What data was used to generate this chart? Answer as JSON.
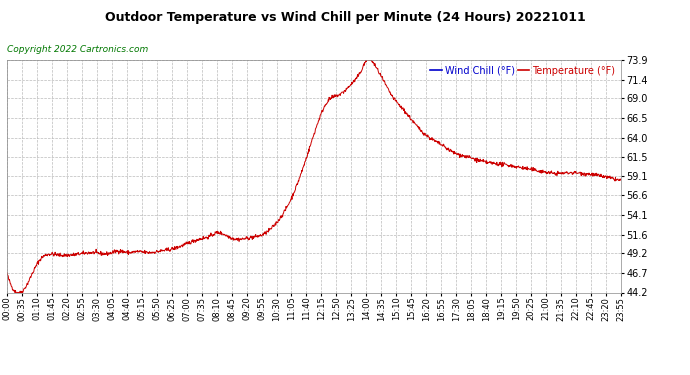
{
  "title": "Outdoor Temperature vs Wind Chill per Minute (24 Hours) 20221011",
  "copyright_text": "Copyright 2022 Cartronics.com",
  "legend_wind_chill": "Wind Chill (°F)",
  "legend_temperature": "Temperature (°F)",
  "y_ticks": [
    44.2,
    46.7,
    49.2,
    51.6,
    54.1,
    56.6,
    59.1,
    61.5,
    64.0,
    66.5,
    69.0,
    71.4,
    73.9
  ],
  "y_min": 44.2,
  "y_max": 73.9,
  "line_color": "#cc0000",
  "background_color": "#ffffff",
  "grid_color": "#bbbbbb",
  "title_color": "#000000",
  "wind_chill_label_color": "#0000cc",
  "temp_label_color": "#cc0000",
  "copyright_color": "#007700",
  "x_tick_labels": [
    "00:00",
    "00:35",
    "01:10",
    "01:45",
    "02:20",
    "02:55",
    "03:30",
    "04:05",
    "04:40",
    "05:15",
    "05:50",
    "06:25",
    "07:00",
    "07:35",
    "08:10",
    "08:45",
    "09:20",
    "09:55",
    "10:30",
    "11:05",
    "11:40",
    "12:15",
    "12:50",
    "13:25",
    "14:00",
    "14:35",
    "15:10",
    "15:45",
    "16:20",
    "16:55",
    "17:30",
    "18:05",
    "18:40",
    "19:15",
    "19:50",
    "20:25",
    "21:00",
    "21:35",
    "22:10",
    "22:45",
    "23:20",
    "23:55"
  ],
  "control_x": [
    0,
    22,
    35,
    75,
    120,
    180,
    200,
    240,
    260,
    290,
    300,
    330,
    360,
    390,
    420,
    450,
    480,
    490,
    510,
    525,
    540,
    560,
    580,
    600,
    630,
    660,
    690,
    720,
    750,
    780,
    810,
    830,
    845,
    855,
    870,
    880,
    900,
    930,
    960,
    990,
    1020,
    1050,
    1080,
    1110,
    1140,
    1170,
    1200,
    1230,
    1260,
    1290,
    1320,
    1350,
    1380,
    1415,
    1439
  ],
  "control_y": [
    46.7,
    44.2,
    44.3,
    48.2,
    49.0,
    49.2,
    49.3,
    49.2,
    49.5,
    49.3,
    49.4,
    49.3,
    49.5,
    49.8,
    50.4,
    51.0,
    51.5,
    51.8,
    51.6,
    51.2,
    51.0,
    51.1,
    51.3,
    51.6,
    53.0,
    55.5,
    59.5,
    64.5,
    68.5,
    69.5,
    71.0,
    72.5,
    74.0,
    73.8,
    72.5,
    71.5,
    69.5,
    67.5,
    65.5,
    64.0,
    63.0,
    62.0,
    61.5,
    61.0,
    60.7,
    60.5,
    60.2,
    59.9,
    59.6,
    59.4,
    59.5,
    59.4,
    59.2,
    58.8,
    58.5
  ]
}
